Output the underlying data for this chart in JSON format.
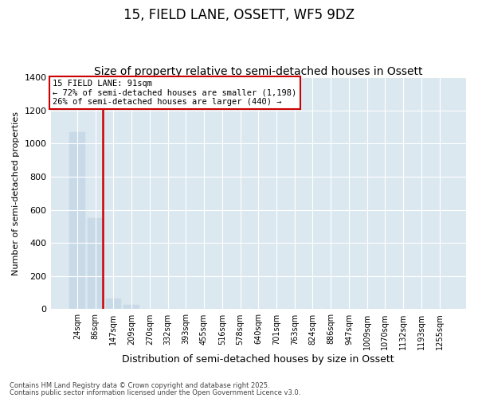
{
  "title_line1": "15, FIELD LANE, OSSETT, WF5 9DZ",
  "title_line2": "Size of property relative to semi-detached houses in Ossett",
  "xlabel": "Distribution of semi-detached houses by size in Ossett",
  "ylabel": "Number of semi-detached properties",
  "categories": [
    "24sqm",
    "86sqm",
    "147sqm",
    "209sqm",
    "270sqm",
    "332sqm",
    "393sqm",
    "455sqm",
    "516sqm",
    "578sqm",
    "640sqm",
    "701sqm",
    "763sqm",
    "824sqm",
    "886sqm",
    "947sqm",
    "1009sqm",
    "1070sqm",
    "1132sqm",
    "1193sqm",
    "1255sqm"
  ],
  "values": [
    1070,
    550,
    65,
    25,
    0,
    0,
    0,
    0,
    0,
    0,
    0,
    0,
    0,
    0,
    0,
    0,
    0,
    0,
    0,
    0,
    0
  ],
  "bar_color": "#c8d9e8",
  "vline_color": "#cc0000",
  "vline_bar_index": 1,
  "annotation_title": "15 FIELD LANE: 91sqm",
  "annotation_line1": "← 72% of semi-detached houses are smaller (1,198)",
  "annotation_line2": "26% of semi-detached houses are larger (440) →",
  "annotation_box_edgecolor": "#cc0000",
  "annotation_box_facecolor": "#ffffff",
  "ylim": [
    0,
    1400
  ],
  "yticks": [
    0,
    200,
    400,
    600,
    800,
    1000,
    1200,
    1400
  ],
  "footnote1": "Contains HM Land Registry data © Crown copyright and database right 2025.",
  "footnote2": "Contains public sector information licensed under the Open Government Licence v3.0.",
  "bg_color": "#ffffff",
  "plot_bg_color": "#dce8f0",
  "grid_color": "#ffffff",
  "title_fontsize": 12,
  "subtitle_fontsize": 10,
  "tick_fontsize": 7,
  "ylabel_fontsize": 8,
  "xlabel_fontsize": 9
}
